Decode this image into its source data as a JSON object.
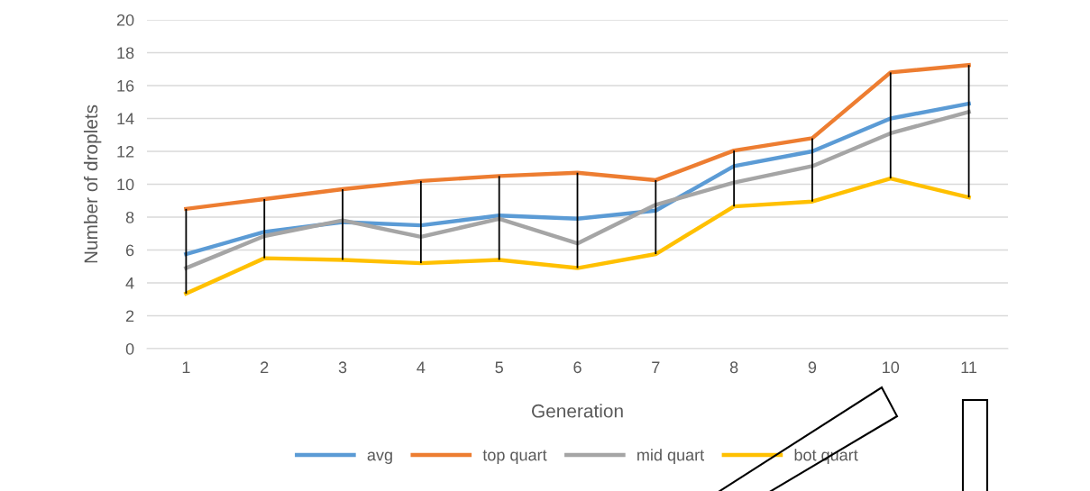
{
  "chart_data": {
    "type": "line",
    "xlabel": "Generation",
    "ylabel": "Number of droplets",
    "categories": [
      "1",
      "2",
      "3",
      "4",
      "5",
      "6",
      "7",
      "8",
      "9",
      "10",
      "11"
    ],
    "series": [
      {
        "name": "avg",
        "color": "#5b9bd5",
        "values": [
          5.75,
          7.1,
          7.7,
          7.5,
          8.1,
          7.9,
          8.4,
          11.1,
          12.0,
          14.0,
          14.9
        ]
      },
      {
        "name": "top quart",
        "color": "#ed7d31",
        "values": [
          8.5,
          9.1,
          9.7,
          10.2,
          10.5,
          10.7,
          10.25,
          12.05,
          12.8,
          16.8,
          17.25
        ],
        "errors": [
          [
            3.35,
            8.5
          ],
          [
            5.5,
            9.1
          ],
          [
            5.4,
            9.7
          ],
          [
            5.2,
            10.2
          ],
          [
            5.4,
            10.5
          ],
          [
            4.9,
            10.7
          ],
          [
            5.75,
            10.25
          ],
          [
            8.65,
            12.05
          ],
          [
            8.95,
            12.8
          ],
          [
            10.35,
            16.8
          ],
          [
            9.2,
            17.25
          ]
        ]
      },
      {
        "name": "mid quart",
        "color": "#a5a5a5",
        "values": [
          4.9,
          6.85,
          7.8,
          6.8,
          7.9,
          6.4,
          8.75,
          10.1,
          11.1,
          13.1,
          14.4
        ]
      },
      {
        "name": "bot quart",
        "color": "#ffc000",
        "values": [
          3.35,
          5.5,
          5.4,
          5.2,
          5.4,
          4.9,
          5.75,
          8.65,
          8.95,
          10.35,
          9.2
        ]
      }
    ],
    "ylim": [
      0,
      20
    ],
    "yticks": [
      0,
      2,
      4,
      6,
      8,
      10,
      12,
      14,
      16,
      18,
      20
    ],
    "grid": "y",
    "legend": "bottom",
    "marker": "none",
    "line_style": "solid"
  }
}
